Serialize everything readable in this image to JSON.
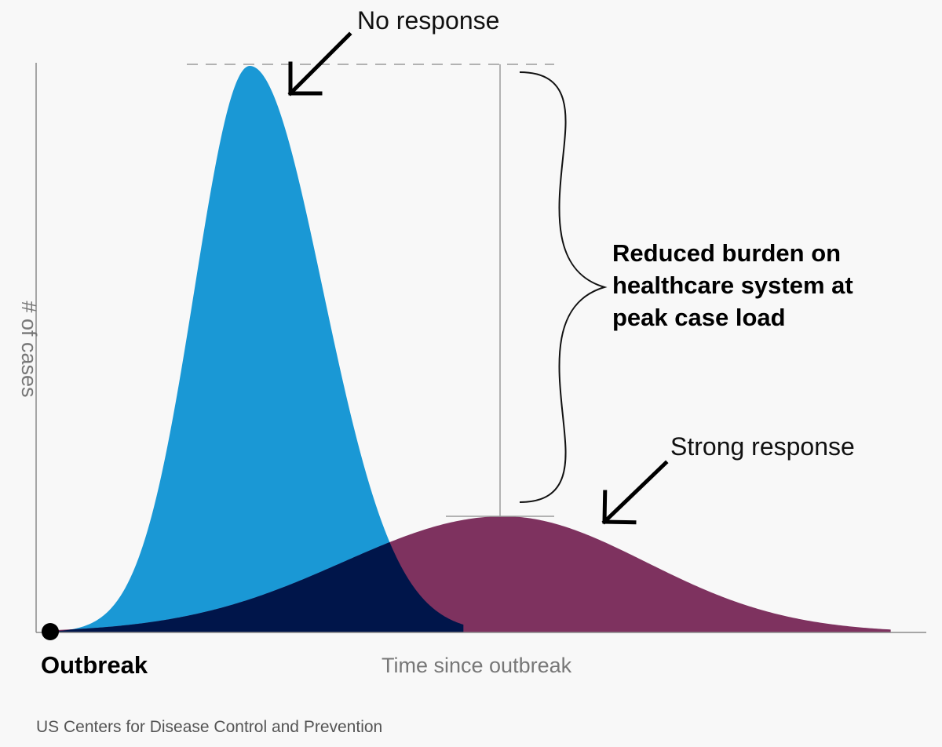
{
  "chart_data": {
    "type": "area",
    "ylabel": "# of cases",
    "xlabel": "Time since outbreak",
    "origin_label": "Outbreak",
    "source": "US Centers for Disease Control and Prevention",
    "xlim": [
      0,
      100
    ],
    "ylim": [
      0,
      100
    ],
    "series": [
      {
        "name": "No response",
        "shape": "gaussian",
        "peak_x": 24.0,
        "peak_y": 100,
        "sigma_left": 6.2,
        "sigma_right": 8.2,
        "color": "#1a98d5"
      },
      {
        "name": "Strong response",
        "shape": "gaussian",
        "peak_x": 52.5,
        "peak_y": 20.5,
        "sigma_left": 18.0,
        "sigma_right": 16.0,
        "color": "#7e325f"
      }
    ],
    "overlap_color": "#00154a",
    "annotations": [
      {
        "text": "No response",
        "points_to": "No response"
      },
      {
        "text": "Strong response",
        "points_to": "Strong response"
      },
      {
        "text_lines": [
          "Reduced burden on",
          "healthcare system at",
          "peak case load"
        ],
        "spans": "peak difference"
      }
    ],
    "grid": false,
    "legend": "none"
  }
}
